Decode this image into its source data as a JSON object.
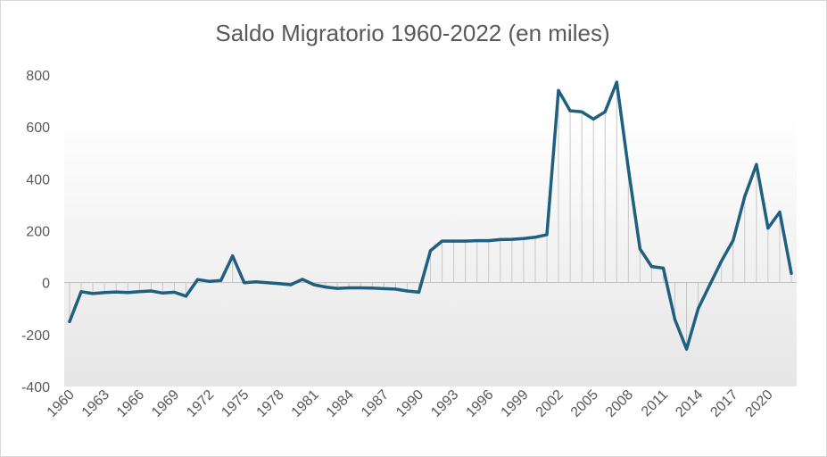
{
  "chart_data": {
    "type": "line",
    "title": "Saldo Migratorio 1960-2022 (en miles)",
    "xlabel": "",
    "ylabel": "",
    "ylim": [
      -400,
      800
    ],
    "yticks": [
      800,
      600,
      400,
      200,
      0,
      -200,
      -400
    ],
    "x_tick_labels": [
      "1960",
      "1963",
      "1966",
      "1969",
      "1972",
      "1975",
      "1978",
      "1981",
      "1984",
      "1987",
      "1990",
      "1993",
      "1996",
      "1999",
      "2002",
      "2005",
      "2008",
      "2011",
      "2014",
      "2017",
      "2020"
    ],
    "grid": false,
    "legend": "none",
    "colors": {
      "line": "#1f5f7f",
      "droplines": "#c8c8c8",
      "axis": "#bfbfbf",
      "plot_fill_top": "#ffffff",
      "plot_fill_bottom": "#e6e6e6"
    },
    "series": [
      {
        "x": [
          1960,
          1961,
          1962,
          1963,
          1964,
          1965,
          1966,
          1967,
          1968,
          1969,
          1970,
          1971,
          1972,
          1973,
          1974,
          1975,
          1976,
          1977,
          1978,
          1979,
          1980,
          1981,
          1982,
          1983,
          1984,
          1985,
          1986,
          1987,
          1988,
          1989,
          1990,
          1991,
          1992,
          1993,
          1994,
          1995,
          1996,
          1997,
          1998,
          1999,
          2000,
          2001,
          2002,
          2003,
          2004,
          2005,
          2006,
          2007,
          2008,
          2009,
          2010,
          2011,
          2012,
          2013,
          2014,
          2015,
          2016,
          2017,
          2018,
          2019,
          2020,
          2021,
          2022
        ],
        "values": [
          -150,
          -35,
          -42,
          -38,
          -36,
          -38,
          -35,
          -32,
          -40,
          -37,
          -52,
          12,
          5,
          8,
          103,
          0,
          3,
          0,
          -4,
          -8,
          13,
          -8,
          -17,
          -22,
          -20,
          -20,
          -21,
          -23,
          -25,
          -32,
          -37,
          123,
          160,
          160,
          160,
          162,
          162,
          166,
          167,
          170,
          175,
          185,
          740,
          662,
          658,
          630,
          658,
          772,
          440,
          130,
          62,
          56,
          -142,
          -256,
          -100,
          -8,
          83,
          163,
          332,
          455,
          210,
          272,
          36
        ]
      }
    ]
  }
}
